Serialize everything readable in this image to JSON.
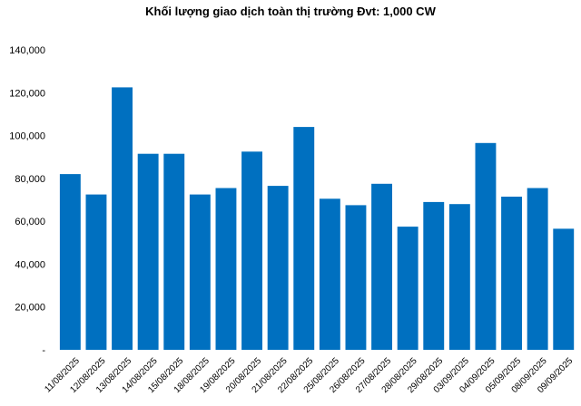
{
  "chart_data": {
    "type": "bar",
    "title": "Khối lượng giao dịch toàn thị trường Đvt: 1,000 CW",
    "xlabel": "",
    "ylabel": "",
    "categories": [
      "11/08/2025",
      "12/08/2025",
      "13/08/2025",
      "14/08/2025",
      "15/08/2025",
      "18/08/2025",
      "19/08/2025",
      "20/08/2025",
      "21/08/2025",
      "22/08/2025",
      "25/08/2025",
      "26/08/2025",
      "27/08/2025",
      "28/08/2025",
      "29/08/2025",
      "03/09/2025",
      "04/09/2025",
      "05/09/2025",
      "08/09/2025",
      "09/09/2025"
    ],
    "values": [
      82000,
      72500,
      122500,
      91500,
      91500,
      72500,
      75500,
      92500,
      76500,
      104000,
      70500,
      67500,
      77500,
      57500,
      69000,
      68000,
      96500,
      71500,
      75500,
      56500
    ],
    "ylim": [
      0,
      140000
    ],
    "yticks": [
      0,
      20000,
      40000,
      60000,
      80000,
      100000,
      120000,
      140000
    ],
    "ytick_labels": [
      "-",
      "20,000",
      "40,000",
      "60,000",
      "80,000",
      "100,000",
      "120,000",
      "140,000"
    ],
    "bar_color": "#0070C0",
    "grid": false,
    "legend": "none"
  }
}
